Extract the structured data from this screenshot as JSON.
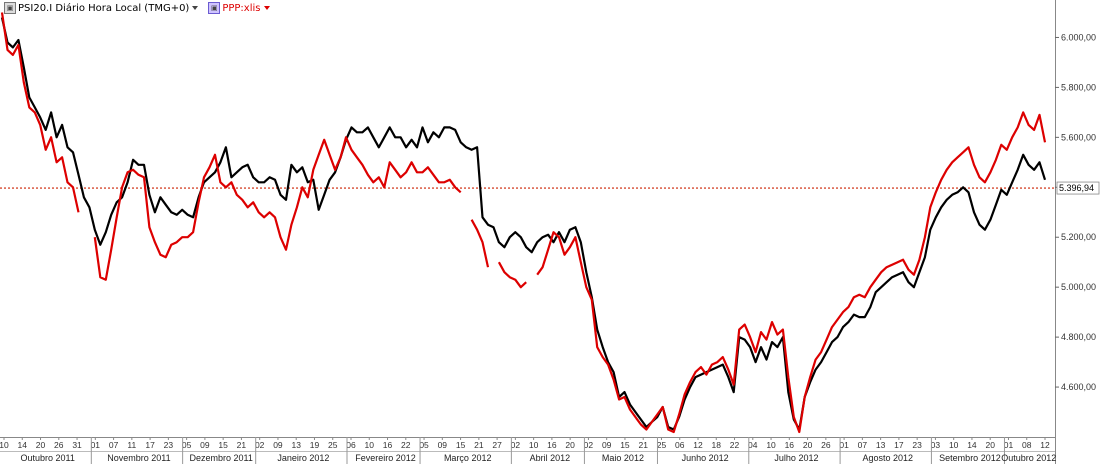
{
  "legend": {
    "series1_label": "PSI20.I Diário Hora Local (TMG+0)",
    "series2_label": "PPP:xlis",
    "series1_icon": "chart-icon",
    "series2_icon": "chart-icon"
  },
  "chart_data": {
    "type": "line",
    "title": "",
    "ylim": [
      4400,
      6150
    ],
    "y_ticks": [
      6000,
      5800,
      5600,
      5400,
      5200,
      5000,
      4800,
      4600
    ],
    "y_tick_labels": [
      "6.000,00",
      "5.800,00",
      "5.600,00",
      "5.400,00",
      "5.200,00",
      "5.000,00",
      "4.800,00",
      "4.600,00"
    ],
    "reference_line": {
      "value": 5396.94,
      "label": "5.396,94",
      "color": "#cc2200"
    },
    "day_ticks": [
      "10",
      "14",
      "20",
      "26",
      "31",
      "01",
      "07",
      "11",
      "17",
      "23",
      "05",
      "09",
      "15",
      "21",
      "02",
      "09",
      "13",
      "19",
      "25",
      "06",
      "10",
      "16",
      "22",
      "05",
      "09",
      "15",
      "21",
      "27",
      "02",
      "10",
      "16",
      "20",
      "02",
      "09",
      "15",
      "21",
      "25",
      "06",
      "12",
      "18",
      "22",
      "04",
      "10",
      "16",
      "20",
      "26",
      "01",
      "07",
      "13",
      "17",
      "23",
      "03",
      "10",
      "14",
      "20",
      "01",
      "08",
      "12"
    ],
    "month_labels": [
      "Outubro 2011",
      "Novembro 2011",
      "Dezembro 2011",
      "Janeiro 2012",
      "Fevereiro 2012",
      "Março 2012",
      "Abril 2012",
      "Maio 2012",
      "Junho 2012",
      "Julho 2012",
      "Agosto 2012",
      "Setembro 2012",
      "Outubro 2012"
    ],
    "series": [
      {
        "name": "PSI20.I",
        "color": "#000000",
        "values": [
          6080,
          5980,
          5960,
          5990,
          5880,
          5760,
          5720,
          5680,
          5630,
          5700,
          5600,
          5650,
          5560,
          5540,
          5450,
          5360,
          5320,
          5230,
          5170,
          5220,
          5290,
          5340,
          5360,
          5420,
          5510,
          5490,
          5490,
          5370,
          5300,
          5360,
          5330,
          5300,
          5290,
          5310,
          5290,
          5280,
          5360,
          5420,
          5440,
          5460,
          5500,
          5560,
          5440,
          5460,
          5480,
          5490,
          5440,
          5420,
          5420,
          5440,
          5430,
          5370,
          5350,
          5490,
          5460,
          5480,
          5420,
          5430,
          5310,
          5370,
          5430,
          5460,
          5520,
          5590,
          5640,
          5620,
          5620,
          5640,
          5600,
          5560,
          5600,
          5640,
          5600,
          5600,
          5560,
          5590,
          5560,
          5640,
          5580,
          5620,
          5600,
          5640,
          5640,
          5630,
          5580,
          5560,
          5550,
          5560,
          5280,
          5250,
          5240,
          5180,
          5160,
          5200,
          5220,
          5200,
          5160,
          5140,
          5180,
          5200,
          5210,
          5180,
          5220,
          5180,
          5230,
          5240,
          5180,
          5060,
          4960,
          4830,
          4760,
          4700,
          4660,
          4560,
          4580,
          4530,
          4500,
          4470,
          4440,
          4460,
          4480,
          4520,
          4440,
          4430,
          4480,
          4550,
          4600,
          4640,
          4650,
          4660,
          4670,
          4680,
          4690,
          4640,
          4580,
          4800,
          4790,
          4760,
          4700,
          4760,
          4710,
          4780,
          4760,
          4800,
          4580,
          4470,
          4430,
          4560,
          4620,
          4670,
          4700,
          4740,
          4780,
          4800,
          4840,
          4860,
          4890,
          4880,
          4880,
          4920,
          4980,
          5000,
          5020,
          5040,
          5050,
          5060,
          5020,
          5000,
          5060,
          5120,
          5230,
          5280,
          5320,
          5350,
          5370,
          5380,
          5400,
          5380,
          5300,
          5250,
          5230,
          5270,
          5330,
          5390,
          5370,
          5420,
          5470,
          5530,
          5490,
          5470,
          5500,
          5430
        ]
      },
      {
        "name": "PPP:xlis",
        "color": "#dd0000",
        "values": [
          6100,
          5950,
          5930,
          5970,
          5820,
          5720,
          5700,
          5650,
          5550,
          5600,
          5500,
          5520,
          5420,
          5400,
          5300,
          null,
          null,
          5200,
          5040,
          5030,
          5150,
          5280,
          5400,
          5460,
          5470,
          5450,
          5440,
          5240,
          5180,
          5130,
          5120,
          5170,
          5180,
          5200,
          5200,
          5220,
          5340,
          5440,
          5480,
          5530,
          5420,
          5400,
          5420,
          5370,
          5350,
          5320,
          5340,
          5300,
          5280,
          5300,
          5280,
          5200,
          5150,
          5250,
          5320,
          5400,
          5360,
          5470,
          5530,
          5590,
          5530,
          5470,
          5520,
          5600,
          5550,
          5520,
          5490,
          5450,
          5420,
          5440,
          5400,
          5500,
          5470,
          5440,
          5460,
          5500,
          5460,
          5460,
          5480,
          5450,
          5420,
          5420,
          5430,
          5400,
          5380,
          null,
          5270,
          5230,
          5180,
          5080,
          null,
          5100,
          5060,
          5040,
          5030,
          5000,
          5020,
          null,
          5050,
          5080,
          5150,
          5220,
          5200,
          5130,
          5160,
          5200,
          5100,
          5000,
          4950,
          4760,
          4720,
          4690,
          4630,
          4550,
          4560,
          4510,
          4480,
          4450,
          4430,
          4460,
          4490,
          4520,
          4430,
          4420,
          4490,
          4570,
          4620,
          4660,
          4680,
          4650,
          4690,
          4700,
          4720,
          4670,
          4610,
          4830,
          4850,
          4800,
          4740,
          4820,
          4790,
          4860,
          4810,
          4830,
          4640,
          4480,
          4420,
          4560,
          4640,
          4710,
          4740,
          4790,
          4840,
          4870,
          4900,
          4920,
          4960,
          4970,
          4960,
          5000,
          5030,
          5060,
          5080,
          5090,
          5100,
          5110,
          5070,
          5050,
          5110,
          5200,
          5320,
          5380,
          5430,
          5470,
          5500,
          5520,
          5540,
          5560,
          5490,
          5440,
          5420,
          5460,
          5510,
          5570,
          5550,
          5600,
          5640,
          5700,
          5650,
          5630,
          5690,
          5580
        ]
      }
    ]
  }
}
